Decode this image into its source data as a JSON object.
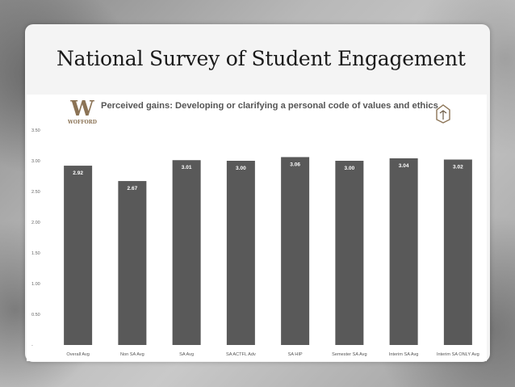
{
  "slide": {
    "title": "National Survey of Student Engagement"
  },
  "logo": {
    "letter": "W",
    "word": "WOFFORD",
    "color": "#8b7355"
  },
  "colors": {
    "bar": "#595959",
    "bar_label": "#ffffff",
    "title_text": "#555555",
    "grid": "#d9d9d9"
  },
  "chart_data": {
    "type": "bar",
    "title": "Perceived gains: Developing or clarifying a personal code of values and ethics",
    "categories": [
      "Overall Avg",
      "Non SA Avg",
      "SA Avg",
      "SA ACTFL Adv",
      "SA HIP",
      "Semester SA Avg",
      "Interim SA Avg",
      "Interim SA ONLY Avg"
    ],
    "values": [
      2.92,
      2.67,
      3.01,
      3.0,
      3.06,
      3.0,
      3.04,
      3.02
    ],
    "value_labels": [
      "2.92",
      "2.67",
      "3.01",
      "3.00",
      "3.06",
      "3.00",
      "3.04",
      "3.02"
    ],
    "y_ticks": [
      0,
      0.5,
      1.0,
      1.5,
      2.0,
      2.5,
      3.0,
      3.5
    ],
    "y_tick_labels": [
      "-",
      "0.50",
      "1.00",
      "1.50",
      "2.00",
      "2.50",
      "3.00",
      "3.50"
    ],
    "ylim": [
      0,
      3.5
    ],
    "xlabel": "",
    "ylabel": "",
    "grid": false,
    "legend": "none"
  }
}
